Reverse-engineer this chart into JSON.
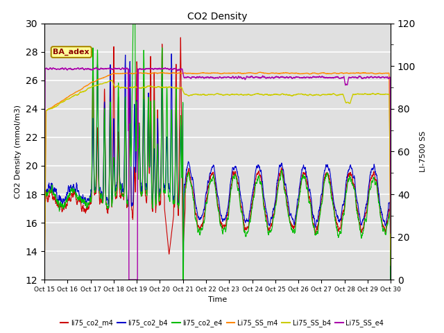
{
  "title": "CO2 Density",
  "xlabel": "Time",
  "ylabel_left": "CO2 Density (mmol/m3)",
  "ylabel_right": "LI-7500 SS",
  "ylim_left": [
    12,
    30
  ],
  "ylim_right": [
    0,
    120
  ],
  "yticks_left": [
    12,
    14,
    16,
    18,
    20,
    22,
    24,
    26,
    28,
    30
  ],
  "yticks_right": [
    0,
    20,
    40,
    60,
    80,
    100,
    120
  ],
  "xtick_labels": [
    "Oct 15",
    "Oct 16",
    "Oct 17",
    "Oct 18",
    "Oct 19",
    "Oct 20",
    "Oct 21",
    "Oct 22",
    "Oct 23",
    "Oct 24",
    "Oct 25",
    "Oct 26",
    "Oct 27",
    "Oct 28",
    "Oct 29",
    "Oct 30"
  ],
  "annotation_text": "BA_adex",
  "bg_color": "#e0e0e0",
  "line_colors": {
    "li75_co2_m4": "#cc0000",
    "li75_co2_b4": "#0000cc",
    "li75_co2_e4": "#00bb00",
    "Li75_SS_m4": "#ff8800",
    "Li75_SS_b4": "#cccc00",
    "Li75_SS_e4": "#aa00aa"
  }
}
